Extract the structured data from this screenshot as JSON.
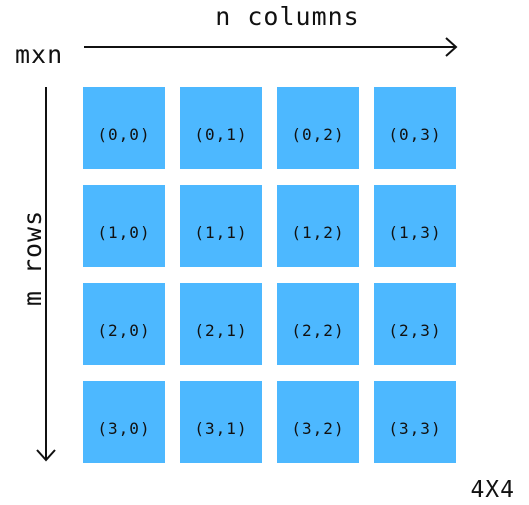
{
  "diagram": {
    "title": "mxn",
    "columns_label": "n columns",
    "rows_label": "m rows",
    "size_label": "4X4",
    "cell_color": "#4db8ff",
    "rows": [
      [
        "(0,0)",
        "(0,1)",
        "(0,2)",
        "(0,3)"
      ],
      [
        "(1,0)",
        "(1,1)",
        "(1,2)",
        "(1,3)"
      ],
      [
        "(2,0)",
        "(2,1)",
        "(2,2)",
        "(2,3)"
      ],
      [
        "(3,0)",
        "(3,1)",
        "(3,2)",
        "(3,3)"
      ]
    ]
  }
}
